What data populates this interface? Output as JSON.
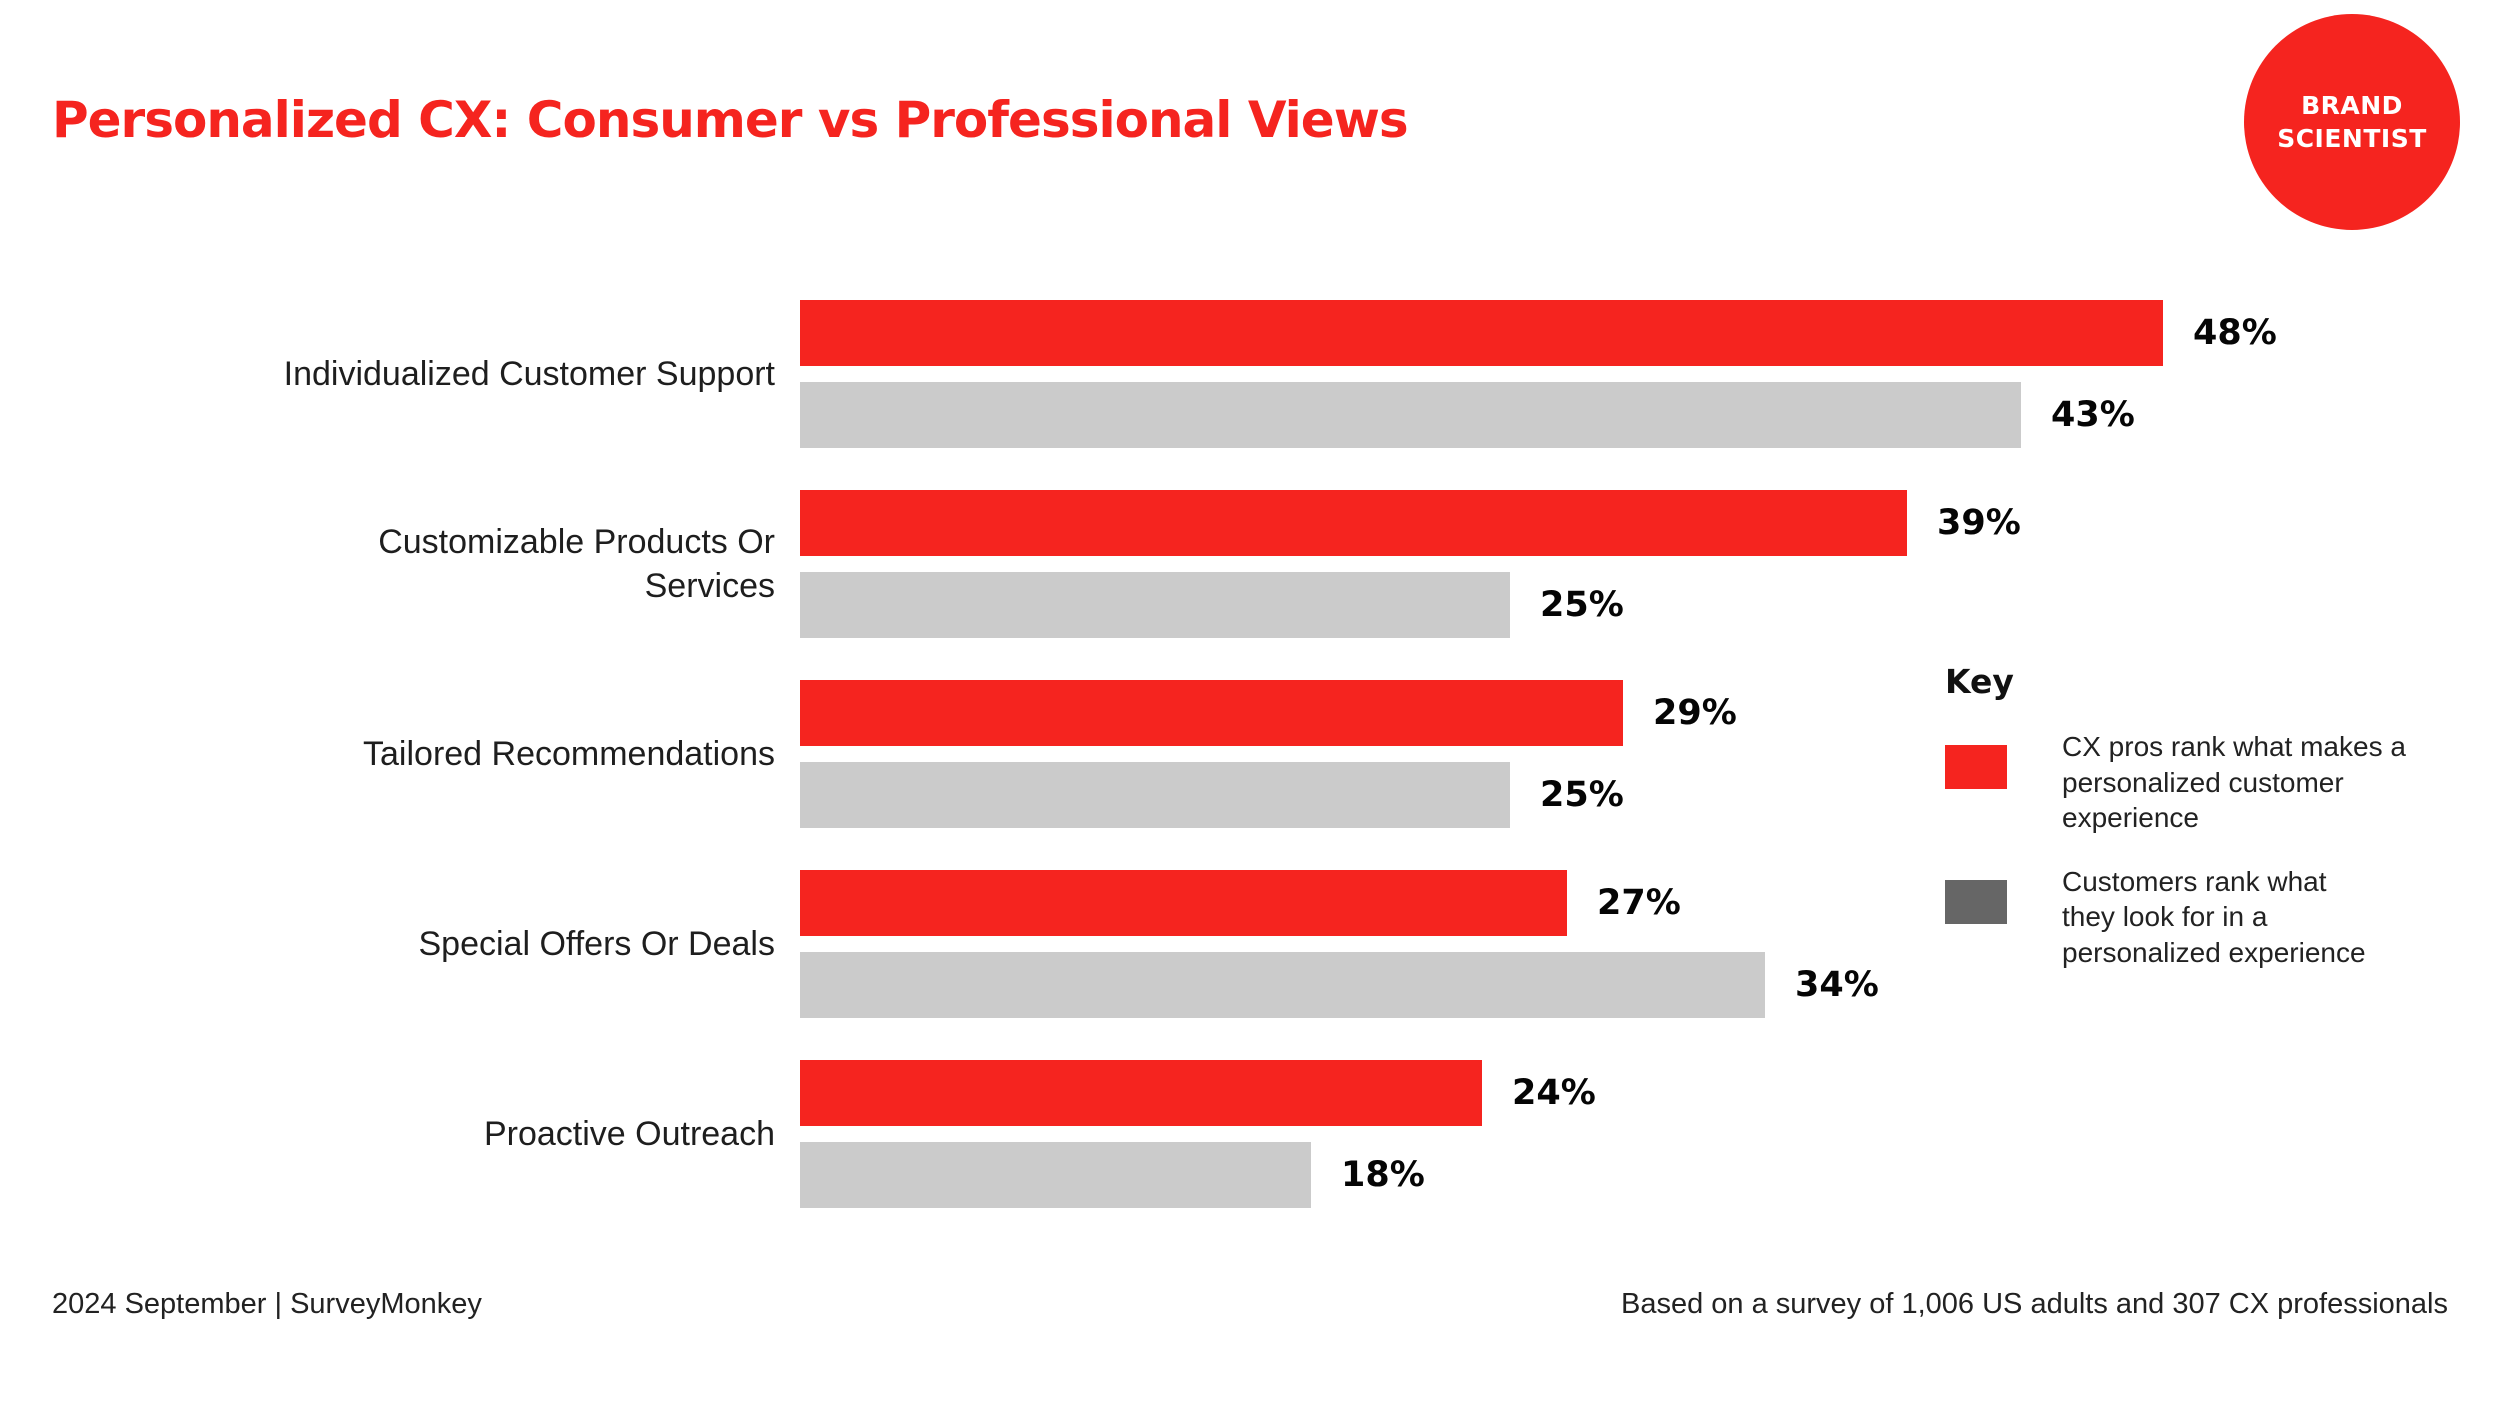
{
  "header": {
    "title": "Personalized CX: Consumer vs Professional Views",
    "badge": "BRAND\nSCIENTIST"
  },
  "colors": {
    "accent_red": "#f5241f",
    "bar_gray": "#cbcbcb",
    "legend_dark_gray": "#666666",
    "text_dark": "#1e1e1e"
  },
  "legend": {
    "title": "Key",
    "items": [
      {
        "swatch_color": "#f5241f",
        "label": "CX pros rank what makes a\npersonalized customer\nexperience"
      },
      {
        "swatch_color": "#666666",
        "label": "Customers rank what\nthey look for in a\npersonalized experience"
      }
    ]
  },
  "footer": {
    "left": "2024 September | SurveyMonkey",
    "right": "Based on a survey of 1,006 US adults and 307 CX professionals"
  },
  "chart_data": {
    "type": "bar",
    "orientation": "horizontal",
    "title": "Personalized CX: Consumer vs Professional Views",
    "value_suffix": "%",
    "xlim": [
      0,
      48
    ],
    "grid": false,
    "legend_position": "right",
    "categories": [
      "Individualized Customer Support",
      "Customizable Products Or\nServices",
      "Tailored Recommendations",
      "Special Offers Or Deals",
      "Proactive Outreach"
    ],
    "series": [
      {
        "name": "CX pros rank what makes a personalized customer experience",
        "color": "#f5241f",
        "values": [
          48,
          39,
          29,
          27,
          24
        ]
      },
      {
        "name": "Customers rank what they look for in a personalized experience",
        "color": "#cbcbcb",
        "values": [
          43,
          25,
          25,
          34,
          18
        ]
      }
    ]
  }
}
